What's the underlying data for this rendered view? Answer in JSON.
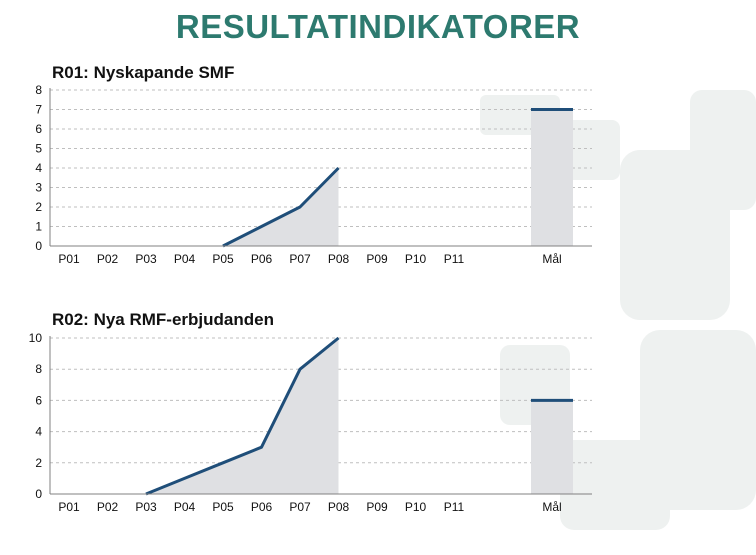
{
  "page": {
    "title": "RESULTATINDIKATORER"
  },
  "colors": {
    "title": "#2d7a6f",
    "line": "#1f4e79",
    "area": "#dfe0e3",
    "grid": "#bfbfbf"
  },
  "chart_data": [
    {
      "type": "line",
      "title": "R01: Nyskapande SMF",
      "categories": [
        "P01",
        "P02",
        "P03",
        "P04",
        "P05",
        "P06",
        "P07",
        "P08",
        "P09",
        "P10",
        "P11",
        "Mål"
      ],
      "series": [
        {
          "values": [
            null,
            null,
            null,
            null,
            0,
            1,
            2,
            4,
            null,
            null,
            null,
            null
          ]
        }
      ],
      "target": {
        "category": "Mål",
        "value": 7
      },
      "ylim": [
        0,
        8
      ],
      "yticks": [
        0,
        1,
        2,
        3,
        4,
        5,
        6,
        7,
        8
      ],
      "grid": true,
      "legend": "none"
    },
    {
      "type": "line",
      "title": "R02: Nya RMF-erbjudanden",
      "categories": [
        "P01",
        "P02",
        "P03",
        "P04",
        "P05",
        "P06",
        "P07",
        "P08",
        "P09",
        "P10",
        "P11",
        "Mål"
      ],
      "series": [
        {
          "values": [
            null,
            null,
            0,
            1,
            2,
            3,
            8,
            10,
            null,
            null,
            null,
            null
          ]
        }
      ],
      "target": {
        "category": "Mål",
        "value": 6
      },
      "ylim": [
        0,
        10
      ],
      "yticks": [
        0,
        2,
        4,
        6,
        8,
        10
      ],
      "grid": true,
      "legend": "none"
    }
  ]
}
